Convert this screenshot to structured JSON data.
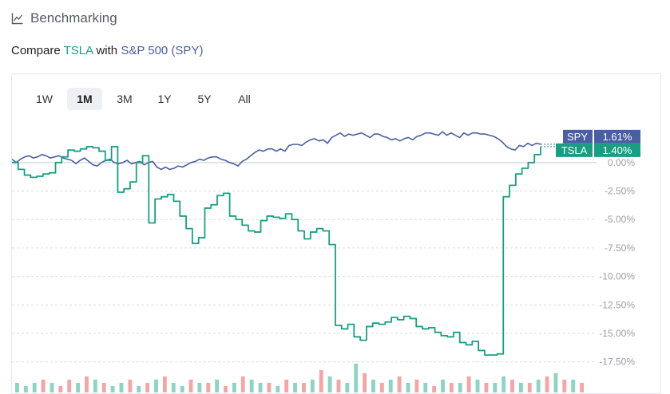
{
  "header": {
    "title": "Benchmarking",
    "icon": "line-chart-icon"
  },
  "compare": {
    "prefix": "Compare",
    "ticker": "TSLA",
    "middle": "with",
    "benchmark": "S&P 500 (SPY)"
  },
  "colors": {
    "tsla": "#1a9e83",
    "spy": "#4a5fa3",
    "up_volume": "#8fd3c3",
    "down_volume": "#f2a7a7",
    "grid": "#d9dcdf"
  },
  "tabs": [
    {
      "label": "1W",
      "active": false
    },
    {
      "label": "1M",
      "active": true
    },
    {
      "label": "3M",
      "active": false
    },
    {
      "label": "1Y",
      "active": false
    },
    {
      "label": "5Y",
      "active": false
    },
    {
      "label": "All",
      "active": false
    }
  ],
  "chart_data": {
    "type": "line",
    "ylim": [
      -18.5,
      3.0
    ],
    "y_ticks": [
      0,
      -2.5,
      -5,
      -7.5,
      -10,
      -12.5,
      -15,
      -17.5
    ],
    "y_tick_labels": [
      "0.00%",
      "-2.50%",
      "-5.00%",
      "-7.50%",
      "-10.00%",
      "-12.50%",
      "-15.00%",
      "-17.50%"
    ],
    "grid": true,
    "legend": "right-of-last-value",
    "series": [
      {
        "name": "SPY",
        "label": "1.61%",
        "last": 1.61,
        "values": [
          0.3,
          0.0,
          0.3,
          0.5,
          0.6,
          0.4,
          0.5,
          0.7,
          0.6,
          0.4,
          0.5,
          0.6,
          0.4,
          0.3,
          0.2,
          -0.1,
          0.2,
          0.4,
          0.1,
          -0.2,
          -0.3,
          0.0,
          0.2,
          0.3,
          0.0,
          -0.1,
          0.0,
          0.2,
          -0.1,
          0.0,
          0.1,
          -0.2,
          0.0,
          0.1,
          -0.4,
          -0.6,
          -0.4,
          -0.6,
          -0.5,
          -0.3,
          -0.4,
          -0.2,
          0.0,
          0.1,
          0.3,
          0.2,
          0.4,
          0.5,
          0.5,
          0.3,
          0.2,
          0.0,
          -0.1,
          -0.3,
          0.1,
          0.3,
          0.6,
          0.9,
          1.1,
          1.0,
          1.2,
          1.2,
          1.0,
          1.2,
          1.0,
          1.5,
          1.6,
          1.6,
          1.5,
          1.8,
          2.0,
          2.1,
          1.9,
          2.0,
          1.7,
          2.2,
          2.4,
          2.6,
          2.3,
          2.5,
          2.4,
          2.5,
          2.6,
          2.4,
          2.2,
          2.5,
          2.5,
          2.3,
          2.2,
          2.0,
          2.1,
          1.9,
          2.1,
          2.2,
          2.0,
          2.3,
          2.4,
          2.6,
          2.6,
          2.5,
          2.4,
          2.7,
          2.4,
          2.6,
          2.4,
          2.2,
          2.6,
          2.4,
          2.6,
          2.6,
          2.5,
          2.5,
          2.4,
          2.3,
          2.1,
          1.8,
          1.4,
          1.2,
          1.1,
          1.5,
          1.4,
          1.7,
          1.5,
          1.7,
          1.61
        ]
      },
      {
        "name": "TSLA",
        "label": "1.40%",
        "last": 1.4,
        "values": [
          0.0,
          -0.6,
          -1.1,
          -1.3,
          -1.2,
          -1.0,
          -0.9,
          0.0,
          0.5,
          1.1,
          1.0,
          1.2,
          1.4,
          1.3,
          1.0,
          0.2,
          1.4,
          -2.6,
          -2.3,
          -1.7,
          0.0,
          0.6,
          -5.3,
          -3.2,
          -3.0,
          -2.8,
          -3.4,
          -4.7,
          -5.8,
          -7.1,
          -6.6,
          -4.0,
          -3.7,
          -2.9,
          -2.7,
          -4.7,
          -5.0,
          -5.5,
          -6.0,
          -6.1,
          -5.1,
          -4.7,
          -4.8,
          -4.9,
          -4.5,
          -5.0,
          -6.0,
          -6.7,
          -6.1,
          -5.8,
          -6.0,
          -7.2,
          -14.3,
          -14.6,
          -14.2,
          -15.3,
          -15.6,
          -14.4,
          -14.1,
          -14.2,
          -14.0,
          -13.6,
          -13.8,
          -13.5,
          -13.7,
          -14.4,
          -14.6,
          -14.5,
          -14.9,
          -15.2,
          -15.3,
          -14.9,
          -15.8,
          -16.0,
          -15.7,
          -16.5,
          -16.9,
          -16.9,
          -16.8,
          -3.0,
          -2.0,
          -1.0,
          -0.5,
          0.0,
          0.7,
          1.4
        ]
      }
    ],
    "volume": [
      [
        "up",
        0.3
      ],
      [
        "up",
        0.2
      ],
      [
        "up",
        0.3
      ],
      [
        "down",
        0.4
      ],
      [
        "up",
        0.3
      ],
      [
        "down",
        0.2
      ],
      [
        "down",
        0.4
      ],
      [
        "up",
        0.3
      ],
      [
        "down",
        0.5
      ],
      [
        "up",
        0.4
      ],
      [
        "down",
        0.3
      ],
      [
        "up",
        0.2
      ],
      [
        "up",
        0.3
      ],
      [
        "down",
        0.4
      ],
      [
        "up",
        0.2
      ],
      [
        "down",
        0.3
      ],
      [
        "up",
        0.4
      ],
      [
        "down",
        0.5
      ],
      [
        "up",
        0.3
      ],
      [
        "up",
        0.2
      ],
      [
        "down",
        0.4
      ],
      [
        "up",
        0.3
      ],
      [
        "down",
        0.3
      ],
      [
        "up",
        0.4
      ],
      [
        "down",
        0.2
      ],
      [
        "up",
        0.3
      ],
      [
        "down",
        0.5
      ],
      [
        "up",
        0.4
      ],
      [
        "up",
        0.3
      ],
      [
        "down",
        0.3
      ],
      [
        "up",
        0.2
      ],
      [
        "down",
        0.4
      ],
      [
        "up",
        0.3
      ],
      [
        "down",
        0.3
      ],
      [
        "up",
        0.4
      ],
      [
        "down",
        0.7
      ],
      [
        "up",
        0.5
      ],
      [
        "down",
        0.4
      ],
      [
        "up",
        0.3
      ],
      [
        "up",
        0.9
      ],
      [
        "down",
        0.6
      ],
      [
        "up",
        0.4
      ],
      [
        "down",
        0.3
      ],
      [
        "up",
        0.4
      ],
      [
        "down",
        0.5
      ],
      [
        "up",
        0.3
      ],
      [
        "down",
        0.4
      ],
      [
        "up",
        0.3
      ],
      [
        "down",
        0.2
      ],
      [
        "up",
        0.4
      ],
      [
        "down",
        0.3
      ],
      [
        "up",
        0.3
      ],
      [
        "down",
        0.5
      ],
      [
        "up",
        0.4
      ],
      [
        "down",
        0.3
      ],
      [
        "up",
        0.3
      ],
      [
        "up",
        0.5
      ],
      [
        "down",
        0.4
      ],
      [
        "up",
        0.3
      ],
      [
        "down",
        0.3
      ],
      [
        "up",
        0.4
      ],
      [
        "down",
        0.5
      ],
      [
        "up",
        0.6
      ],
      [
        "down",
        0.4
      ],
      [
        "up",
        0.4
      ],
      [
        "down",
        0.3
      ]
    ]
  }
}
